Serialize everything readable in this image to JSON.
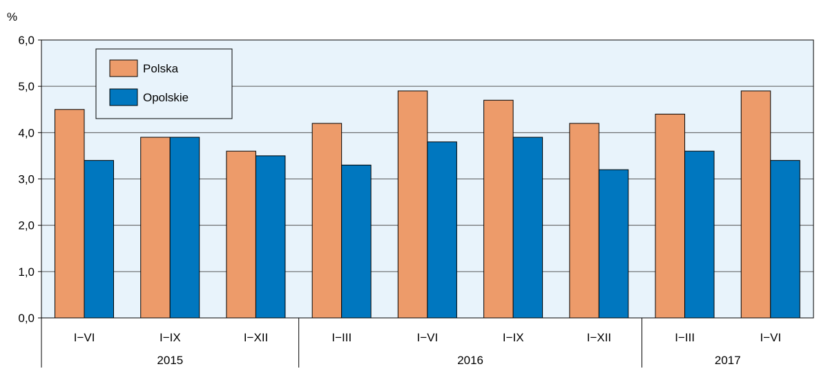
{
  "chart_data": {
    "type": "bar",
    "unit_label": "%",
    "categories": [
      "I−VI",
      "I−IX",
      "I−XII",
      "I−III",
      "I−VI",
      "I−IX",
      "I−XII",
      "I−III",
      "I−VI"
    ],
    "groups": [
      {
        "label": "2015",
        "count": 3
      },
      {
        "label": "2016",
        "count": 4
      },
      {
        "label": "2017",
        "count": 2
      }
    ],
    "series": [
      {
        "name": "Polska",
        "color": "#ED9B6A",
        "values": [
          4.5,
          3.9,
          3.6,
          4.2,
          4.9,
          4.7,
          4.2,
          4.4,
          4.9
        ]
      },
      {
        "name": "Opolskie",
        "color": "#0077BF",
        "values": [
          3.4,
          3.9,
          3.5,
          3.3,
          3.8,
          3.9,
          3.2,
          3.6,
          3.4
        ]
      }
    ],
    "y_ticks": [
      "0,0",
      "1,0",
      "2,0",
      "3,0",
      "4,0",
      "5,0",
      "6,0"
    ],
    "ylim": [
      0,
      6
    ],
    "grid": true,
    "legend_position": "top-left",
    "plot_background": "#E8F3FB"
  }
}
